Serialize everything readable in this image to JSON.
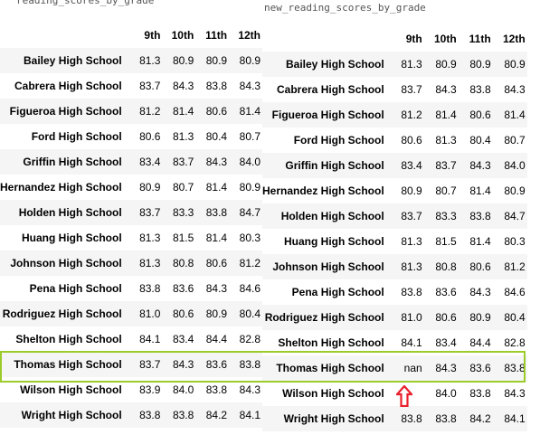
{
  "left": {
    "var_name": "reading_scores_by_grade",
    "columns": [
      "9th",
      "10th",
      "11th",
      "12th"
    ],
    "rows": [
      {
        "school": "Bailey High School",
        "values": [
          "81.3",
          "80.9",
          "80.9",
          "80.9"
        ]
      },
      {
        "school": "Cabrera High School",
        "values": [
          "83.7",
          "84.3",
          "83.8",
          "84.3"
        ]
      },
      {
        "school": "Figueroa High School",
        "values": [
          "81.2",
          "81.4",
          "80.6",
          "81.4"
        ]
      },
      {
        "school": "Ford High School",
        "values": [
          "80.6",
          "81.3",
          "80.4",
          "80.7"
        ]
      },
      {
        "school": "Griffin High School",
        "values": [
          "83.4",
          "83.7",
          "84.3",
          "84.0"
        ]
      },
      {
        "school": "Hernandez High School",
        "values": [
          "80.9",
          "80.7",
          "81.4",
          "80.9"
        ]
      },
      {
        "school": "Holden High School",
        "values": [
          "83.7",
          "83.3",
          "83.8",
          "84.7"
        ]
      },
      {
        "school": "Huang High School",
        "values": [
          "81.3",
          "81.5",
          "81.4",
          "80.3"
        ]
      },
      {
        "school": "Johnson High School",
        "values": [
          "81.3",
          "80.8",
          "80.6",
          "81.2"
        ]
      },
      {
        "school": "Pena High School",
        "values": [
          "83.8",
          "83.6",
          "84.3",
          "84.6"
        ]
      },
      {
        "school": "Rodriguez High School",
        "values": [
          "81.0",
          "80.6",
          "80.9",
          "80.4"
        ]
      },
      {
        "school": "Shelton High School",
        "values": [
          "84.1",
          "83.4",
          "84.4",
          "82.8"
        ]
      },
      {
        "school": "Thomas High School",
        "values": [
          "83.7",
          "84.3",
          "83.6",
          "83.8"
        ]
      },
      {
        "school": "Wilson High School",
        "values": [
          "83.9",
          "84.0",
          "83.8",
          "84.3"
        ]
      },
      {
        "school": "Wright High School",
        "values": [
          "83.8",
          "83.8",
          "84.2",
          "84.1"
        ]
      }
    ]
  },
  "right": {
    "var_name": "new_reading_scores_by_grade",
    "columns": [
      "9th",
      "10th",
      "11th",
      "12th"
    ],
    "rows": [
      {
        "school": "Bailey High School",
        "values": [
          "81.3",
          "80.9",
          "80.9",
          "80.9"
        ]
      },
      {
        "school": "Cabrera High School",
        "values": [
          "83.7",
          "84.3",
          "83.8",
          "84.3"
        ]
      },
      {
        "school": "Figueroa High School",
        "values": [
          "81.2",
          "81.4",
          "80.6",
          "81.4"
        ]
      },
      {
        "school": "Ford High School",
        "values": [
          "80.6",
          "81.3",
          "80.4",
          "80.7"
        ]
      },
      {
        "school": "Griffin High School",
        "values": [
          "83.4",
          "83.7",
          "84.3",
          "84.0"
        ]
      },
      {
        "school": "Hernandez High School",
        "values": [
          "80.9",
          "80.7",
          "81.4",
          "80.9"
        ]
      },
      {
        "school": "Holden High School",
        "values": [
          "83.7",
          "83.3",
          "83.8",
          "84.7"
        ]
      },
      {
        "school": "Huang High School",
        "values": [
          "81.3",
          "81.5",
          "81.4",
          "80.3"
        ]
      },
      {
        "school": "Johnson High School",
        "values": [
          "81.3",
          "80.8",
          "80.6",
          "81.2"
        ]
      },
      {
        "school": "Pena High School",
        "values": [
          "83.8",
          "83.6",
          "84.3",
          "84.6"
        ]
      },
      {
        "school": "Rodriguez High School",
        "values": [
          "81.0",
          "80.6",
          "80.9",
          "80.4"
        ]
      },
      {
        "school": "Shelton High School",
        "values": [
          "84.1",
          "83.4",
          "84.4",
          "82.8"
        ]
      },
      {
        "school": "Thomas High School",
        "values": [
          "nan",
          "84.3",
          "83.6",
          "83.8"
        ]
      },
      {
        "school": "Wilson High School",
        "values": [
          "",
          "84.0",
          "83.8",
          "84.3"
        ]
      },
      {
        "school": "Wright High School",
        "values": [
          "83.8",
          "83.8",
          "84.2",
          "84.1"
        ]
      }
    ]
  },
  "annotation": {
    "highlight_color": "#9bcc2a",
    "arrow_color": "#e8202a",
    "arrow_icon": "up-arrow-icon"
  }
}
